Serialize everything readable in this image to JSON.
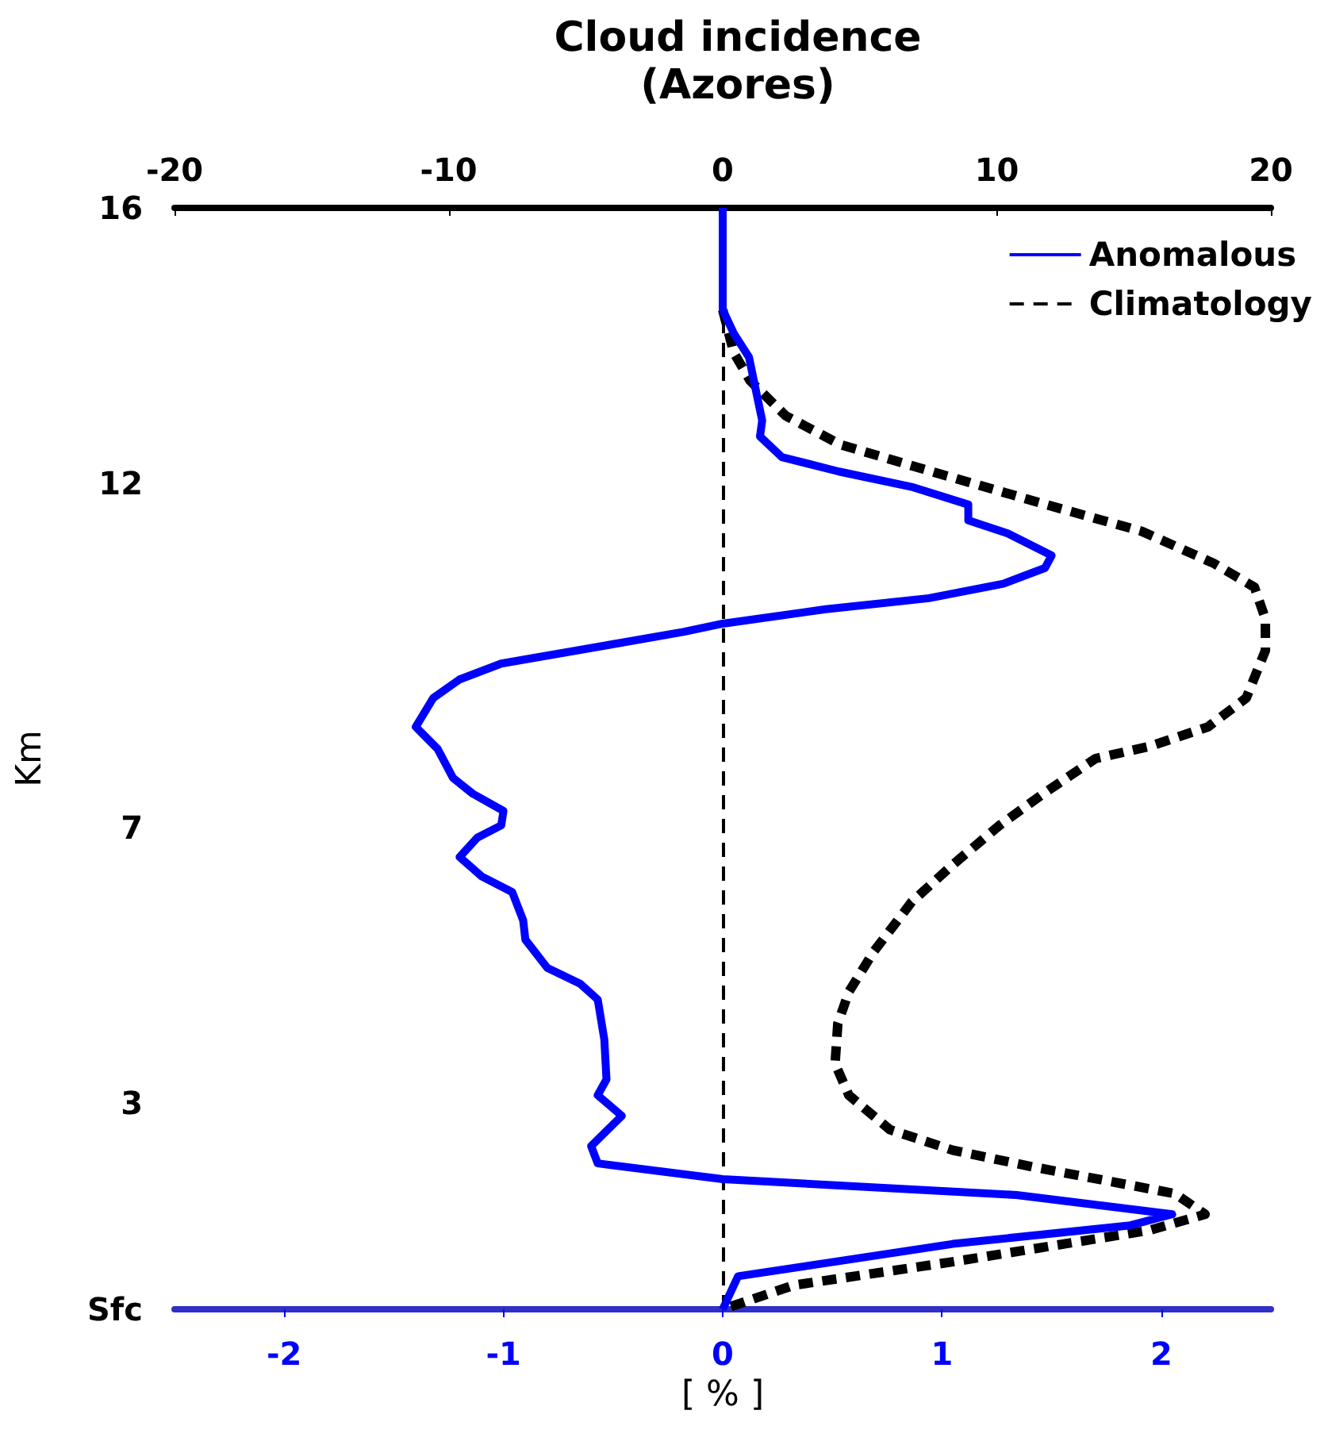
{
  "chart_data": {
    "type": "line",
    "title": "Cloud incidence\n(Azores)",
    "xlabel": "[ % ]",
    "ylabel": "Km",
    "xlim": [
      -2.5,
      2.5
    ],
    "xticks": [
      -2,
      -1,
      0,
      1,
      2
    ],
    "x2lim": [
      -20,
      20
    ],
    "x2ticks": [
      -20,
      -10,
      0,
      10,
      20
    ],
    "ylim": [
      0,
      16
    ],
    "yticks": [
      {
        "value": 0,
        "label": "Sfc"
      },
      3,
      7,
      12,
      16
    ],
    "legend": "top right",
    "grid": false,
    "ref_lines": [
      {
        "axis": "x",
        "value": 0,
        "color": "#000000",
        "line_style": "dashed"
      }
    ],
    "series": [
      {
        "name": "Anomalous",
        "color": "#0000ff",
        "line_style": "solid",
        "x": [
          0,
          0,
          0.05,
          0.12,
          0.15,
          0.18,
          0.17,
          0.27,
          0.53,
          0.87,
          1.12,
          1.12,
          1.3,
          1.5,
          1.47,
          1.28,
          0.94,
          0.47,
          0,
          -0.18,
          -0.54,
          -1.01,
          -1.2,
          -1.32,
          -1.4,
          -1.3,
          -1.23,
          -1.14,
          -1.0,
          -1.01,
          -1.12,
          -1.2,
          -1.1,
          -0.96,
          -0.91,
          -0.9,
          -0.8,
          -0.65,
          -0.57,
          -0.54,
          -0.53,
          -0.57,
          -0.46,
          -0.6,
          -0.57,
          0,
          1.34,
          2.05,
          1.86,
          1.05,
          0.51,
          0.07,
          0
        ],
        "values": [
          16,
          14.52,
          14.18,
          13.83,
          13.37,
          12.91,
          12.68,
          12.38,
          12.17,
          11.94,
          11.69,
          11.46,
          11.27,
          10.95,
          10.77,
          10.54,
          10.33,
          10.17,
          9.96,
          9.84,
          9.64,
          9.38,
          9.15,
          8.88,
          8.46,
          8.14,
          7.72,
          7.49,
          7.24,
          7.03,
          6.85,
          6.57,
          6.29,
          6.06,
          5.65,
          5.37,
          4.96,
          4.73,
          4.5,
          3.92,
          3.34,
          3.11,
          2.81,
          2.37,
          2.12,
          1.89,
          1.66,
          1.38,
          1.22,
          0.95,
          0.69,
          0.48,
          0
        ]
      },
      {
        "name": "Climatology",
        "color": "#000000",
        "line_style": "dashed",
        "axis": "x2",
        "x": [
          0,
          0.4,
          1.0,
          2.3,
          4.3,
          7.8,
          11.8,
          15.3,
          17.9,
          19.4,
          19.8,
          19.8,
          19.1,
          17.7,
          15.6,
          13.6,
          11.7,
          10.1,
          8.4,
          6.9,
          5.5,
          4.6,
          4.2,
          4.1,
          4.6,
          6.1,
          8.4,
          11.3,
          16.5,
          17.6,
          15.6,
          8.4,
          2.6,
          0
        ],
        "values": [
          14.52,
          13.9,
          13.49,
          12.98,
          12.56,
          12.15,
          11.69,
          11.3,
          10.84,
          10.49,
          10.03,
          9.57,
          8.88,
          8.46,
          8.18,
          8.0,
          7.49,
          7.03,
          6.46,
          5.92,
          5.19,
          4.61,
          4.15,
          3.57,
          3.11,
          2.61,
          2.31,
          2.07,
          1.68,
          1.38,
          1.15,
          0.69,
          0.35,
          0
        ]
      }
    ]
  }
}
